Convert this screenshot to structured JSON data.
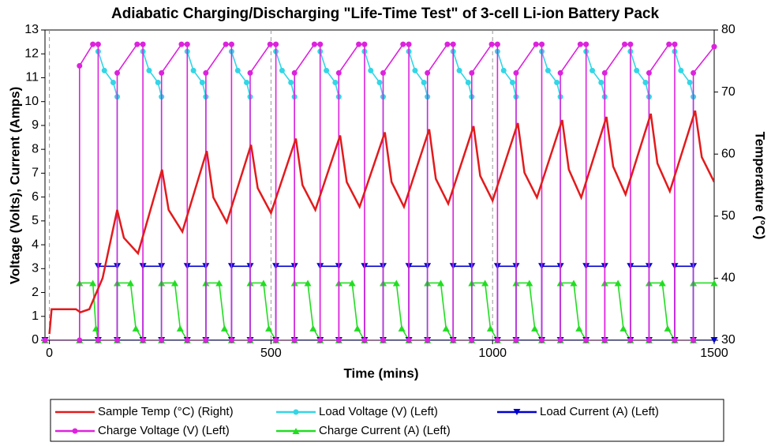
{
  "chart_data": {
    "type": "line",
    "title": "Adiabatic Charging/Discharging \"Life-Time Test\" of 3-cell Li-ion Battery Pack",
    "x_label": "Time (mins)",
    "y_label": "Voltage (Volts), Current (Amps)",
    "y2_label": "Temperature (°C)",
    "xlim": [
      -10,
      1500
    ],
    "xticks": [
      0,
      500,
      1000,
      1500
    ],
    "ylim": [
      0,
      13
    ],
    "yticks": [
      0,
      1,
      2,
      3,
      4,
      5,
      6,
      7,
      8,
      9,
      10,
      11,
      12,
      13
    ],
    "y2lim": [
      30,
      80
    ],
    "y2ticks": [
      30,
      40,
      50,
      60,
      70,
      80
    ],
    "grid": "x-dashed",
    "series": [
      {
        "name": "Sample Temp (°C) (Right)",
        "color": "#e31a1c",
        "axis": "y2",
        "marker": "none",
        "x": [
          0,
          5,
          60,
          70,
          90,
          120,
          153,
          168,
          200,
          254,
          269,
          300,
          355,
          370,
          400,
          455,
          470,
          500,
          556,
          571,
          600,
          656,
          671,
          700,
          757,
          772,
          800,
          857,
          872,
          900,
          957,
          972,
          1000,
          1057,
          1072,
          1100,
          1157,
          1172,
          1200,
          1257,
          1272,
          1300,
          1357,
          1372,
          1400,
          1457,
          1472,
          1500
        ],
        "values": [
          31,
          35,
          35,
          34.5,
          35,
          40,
          51,
          46.5,
          44,
          57.5,
          51,
          47.5,
          60.5,
          53,
          49,
          61.5,
          54.5,
          50.5,
          62.5,
          55,
          51,
          63,
          55.5,
          51.5,
          63.5,
          55.5,
          51.5,
          64,
          56,
          52,
          64.5,
          56.5,
          52.5,
          65,
          57,
          53,
          65.5,
          57.5,
          53,
          66,
          58,
          53.5,
          66.5,
          58.5,
          54,
          67,
          59.5,
          55.5
        ]
      },
      {
        "name": "Load Voltage (V) (Left)",
        "color": "#33d6e6",
        "marker": "circle",
        "x": [
          110,
          124,
          144,
          153,
          153,
          180,
          211,
          225,
          245,
          253,
          253,
          281,
          311,
          325,
          345,
          353,
          353,
          381,
          411,
          425,
          445,
          453,
          453,
          481,
          511,
          525,
          545,
          553,
          553,
          581,
          611,
          625,
          645,
          653,
          653,
          681,
          711,
          725,
          745,
          753,
          753,
          781,
          811,
          825,
          845,
          853,
          853,
          881,
          911,
          925,
          945,
          953,
          953,
          981,
          1011,
          1025,
          1045,
          1053,
          1053,
          1081,
          1111,
          1125,
          1145,
          1153,
          1153,
          1181,
          1211,
          1225,
          1245,
          1253,
          1253,
          1281,
          1311,
          1325,
          1345,
          1353,
          1353,
          1381,
          1411,
          1425,
          1445,
          1453,
          1453
        ],
        "values": [
          12.1,
          11.3,
          10.8,
          10.2,
          0,
          null,
          12.1,
          11.3,
          10.8,
          10.2,
          0,
          null,
          12.1,
          11.3,
          10.8,
          10.2,
          0,
          null,
          12.1,
          11.3,
          10.8,
          10.2,
          0,
          null,
          12.1,
          11.3,
          10.8,
          10.2,
          0,
          null,
          12.1,
          11.3,
          10.8,
          10.2,
          0,
          null,
          12.1,
          11.3,
          10.8,
          10.2,
          0,
          null,
          12.1,
          11.3,
          10.8,
          10.2,
          0,
          null,
          12.1,
          11.3,
          10.8,
          10.2,
          0,
          null,
          12.1,
          11.3,
          10.8,
          10.2,
          0,
          null,
          12.1,
          11.3,
          10.8,
          10.2,
          0,
          null,
          12.1,
          11.3,
          10.8,
          10.2,
          0,
          null,
          12.1,
          11.3,
          10.8,
          10.2,
          0,
          null,
          12.1,
          11.3,
          10.8,
          10.2,
          0
        ]
      },
      {
        "name": "Load Current (A) (Left)",
        "color": "#0000cc",
        "marker": "triangle-down",
        "x": [
          -10,
          110,
          110,
          153,
          153,
          211,
          211,
          253,
          253,
          311,
          311,
          353,
          353,
          411,
          411,
          453,
          453,
          511,
          511,
          553,
          553,
          611,
          611,
          653,
          653,
          711,
          711,
          753,
          753,
          811,
          811,
          853,
          853,
          911,
          911,
          953,
          953,
          1011,
          1011,
          1053,
          1053,
          1111,
          1111,
          1153,
          1153,
          1211,
          1211,
          1253,
          1253,
          1311,
          1311,
          1353,
          1353,
          1411,
          1411,
          1453,
          1453,
          1500
        ],
        "values": [
          0,
          0,
          3.1,
          3.1,
          0,
          0,
          3.1,
          3.1,
          0,
          0,
          3.1,
          3.1,
          0,
          0,
          3.1,
          3.1,
          0,
          0,
          3.1,
          3.1,
          0,
          0,
          3.1,
          3.1,
          0,
          0,
          3.1,
          3.1,
          0,
          0,
          3.1,
          3.1,
          0,
          0,
          3.1,
          3.1,
          0,
          0,
          3.1,
          3.1,
          0,
          0,
          3.1,
          3.1,
          0,
          0,
          3.1,
          3.1,
          0,
          0,
          3.1,
          3.1,
          0,
          0,
          3.1,
          3.1,
          0,
          0
        ]
      },
      {
        "name": "Charge Voltage (V) (Left)",
        "color": "#dd22dd",
        "marker": "circle",
        "x": [
          -10,
          68,
          68,
          98,
          110,
          110,
          153,
          153,
          198,
          211,
          211,
          253,
          253,
          298,
          311,
          311,
          353,
          353,
          398,
          411,
          411,
          453,
          453,
          498,
          511,
          511,
          553,
          553,
          598,
          611,
          611,
          653,
          653,
          698,
          711,
          711,
          753,
          753,
          798,
          811,
          811,
          853,
          853,
          898,
          911,
          911,
          953,
          953,
          998,
          1011,
          1011,
          1053,
          1053,
          1098,
          1111,
          1111,
          1153,
          1153,
          1198,
          1211,
          1211,
          1253,
          1253,
          1298,
          1311,
          1311,
          1353,
          1353,
          1398,
          1411,
          1411,
          1453,
          1453,
          1500
        ],
        "values": [
          0,
          0,
          11.5,
          12.4,
          12.4,
          0,
          0,
          11.2,
          12.4,
          12.4,
          0,
          0,
          11.2,
          12.4,
          12.4,
          0,
          0,
          11.2,
          12.4,
          12.4,
          0,
          0,
          11.2,
          12.4,
          12.4,
          0,
          0,
          11.2,
          12.4,
          12.4,
          0,
          0,
          11.2,
          12.4,
          12.4,
          0,
          0,
          11.2,
          12.4,
          12.4,
          0,
          0,
          11.2,
          12.4,
          12.4,
          0,
          0,
          11.2,
          12.4,
          12.4,
          0,
          0,
          11.2,
          12.4,
          12.4,
          0,
          0,
          11.2,
          12.4,
          12.4,
          0,
          0,
          11.2,
          12.4,
          12.4,
          0,
          0,
          11.2,
          12.4,
          12.4,
          0,
          0,
          11.2,
          12.3
        ]
      },
      {
        "name": "Charge Current (A) (Left)",
        "color": "#22dd22",
        "marker": "triangle-up",
        "x": [
          -10,
          68,
          68,
          98,
          105,
          110,
          153,
          153,
          183,
          195,
          211,
          253,
          253,
          283,
          295,
          311,
          353,
          353,
          383,
          395,
          411,
          453,
          453,
          483,
          495,
          511,
          553,
          553,
          583,
          595,
          611,
          653,
          653,
          683,
          695,
          711,
          753,
          753,
          783,
          795,
          811,
          853,
          853,
          883,
          895,
          911,
          953,
          953,
          983,
          995,
          1011,
          1053,
          1053,
          1083,
          1095,
          1111,
          1153,
          1153,
          1183,
          1195,
          1211,
          1253,
          1253,
          1283,
          1295,
          1311,
          1353,
          1353,
          1383,
          1395,
          1411,
          1453,
          1453,
          1500
        ],
        "values": [
          0,
          0,
          2.4,
          2.4,
          0.5,
          0,
          0,
          2.4,
          2.4,
          0.5,
          0,
          0,
          2.4,
          2.4,
          0.5,
          0,
          0,
          2.4,
          2.4,
          0.5,
          0,
          0,
          2.4,
          2.4,
          0.5,
          0,
          0,
          2.4,
          2.4,
          0.5,
          0,
          0,
          2.4,
          2.4,
          0.5,
          0,
          0,
          2.4,
          2.4,
          0.5,
          0,
          0,
          2.4,
          2.4,
          0.5,
          0,
          0,
          2.4,
          2.4,
          0.5,
          0,
          0,
          2.4,
          2.4,
          0.5,
          0,
          0,
          2.4,
          2.4,
          0.5,
          0,
          0,
          2.4,
          2.4,
          0.5,
          0,
          0,
          2.4,
          2.4,
          0.5,
          0,
          0,
          2.4,
          2.4
        ]
      }
    ]
  }
}
